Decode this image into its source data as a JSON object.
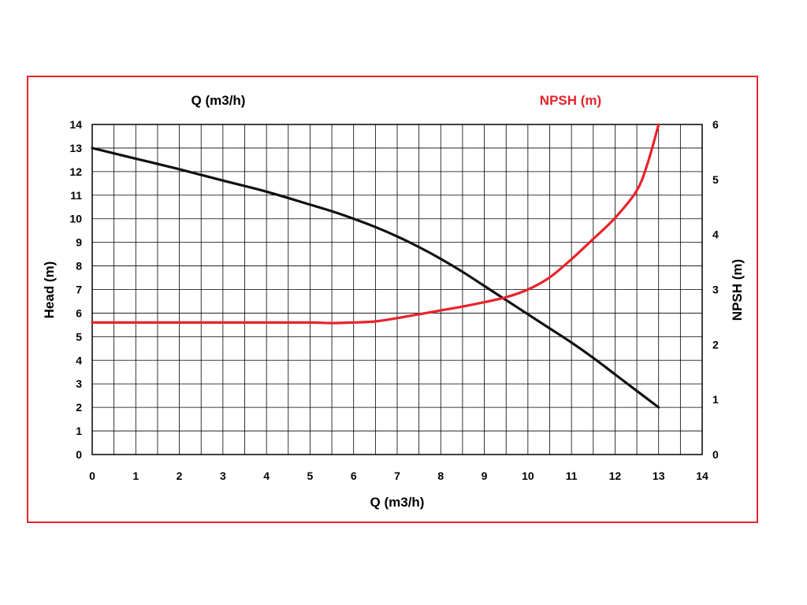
{
  "chart_data": {
    "type": "line",
    "title_left": "Q (m3/h)",
    "title_right": "NPSH (m)",
    "xlabel": "Q (m3/h)",
    "ylabel": "Head (m)",
    "y2label": "NPSH (m)",
    "xlim": [
      0,
      14
    ],
    "ylim": [
      0,
      14
    ],
    "y2lim": [
      0,
      6
    ],
    "x_ticks": [
      0,
      1,
      2,
      3,
      4,
      5,
      6,
      7,
      8,
      9,
      10,
      11,
      12,
      13,
      14
    ],
    "y_ticks": [
      0,
      1,
      2,
      3,
      4,
      5,
      6,
      7,
      8,
      9,
      10,
      11,
      12,
      13,
      14
    ],
    "y2_ticks": [
      0,
      1,
      2,
      3,
      4,
      5,
      6
    ],
    "x_minor_step": 0.5,
    "grid": true,
    "colors": {
      "frame": "#e8232b",
      "npsh": "#e8232b",
      "head": "#111111",
      "grid": "#000000"
    },
    "series": [
      {
        "axis": "left",
        "x": [
          0,
          1,
          2,
          3,
          4,
          5,
          5.5,
          6,
          6.5,
          7,
          7.5,
          8,
          8.5,
          9,
          9.5,
          10,
          10.5,
          11,
          11.5,
          12,
          12.5,
          13
        ],
        "values": [
          13.0,
          12.55,
          12.1,
          11.62,
          11.15,
          10.6,
          10.32,
          10.0,
          9.65,
          9.25,
          8.8,
          8.3,
          7.75,
          7.15,
          6.55,
          5.95,
          5.35,
          4.75,
          4.1,
          3.4,
          2.7,
          2.0
        ]
      },
      {
        "axis": "right",
        "x": [
          0,
          1,
          2,
          3,
          4,
          5,
          5.5,
          6,
          6.5,
          7,
          7.5,
          8,
          8.5,
          9,
          9.5,
          10,
          10.5,
          11,
          11.5,
          12,
          12.5,
          12.75,
          13
        ],
        "values": [
          2.4,
          2.4,
          2.4,
          2.4,
          2.4,
          2.4,
          2.39,
          2.4,
          2.42,
          2.48,
          2.55,
          2.62,
          2.69,
          2.77,
          2.86,
          3.0,
          3.22,
          3.55,
          3.92,
          4.3,
          4.8,
          5.3,
          6.0
        ]
      }
    ]
  }
}
